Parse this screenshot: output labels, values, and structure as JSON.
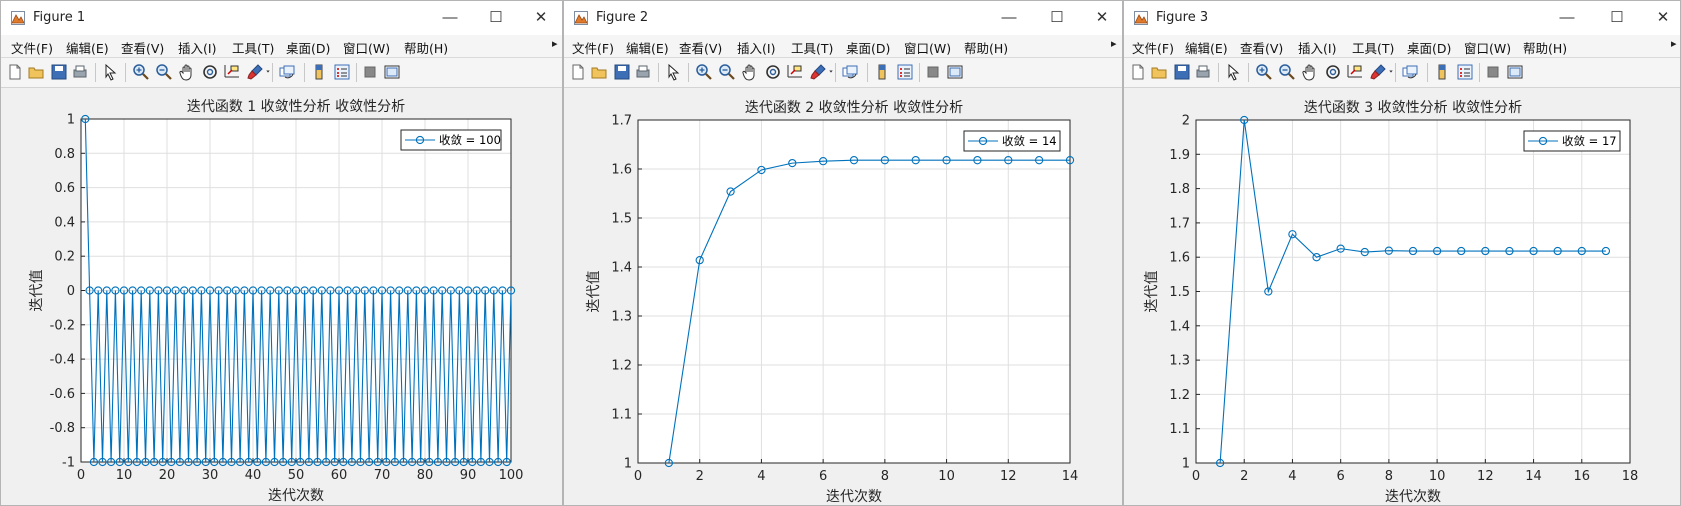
{
  "menu": [
    "文件(F)",
    "编辑(E)",
    "查看(V)",
    "插入(I)",
    "工具(T)",
    "桌面(D)",
    "窗口(W)",
    "帮助(H)"
  ],
  "menu_overflow": "▸",
  "window_controls": {
    "minimize": "—",
    "maximize": "☐",
    "close": "✕"
  },
  "toolbar_icons": [
    "new-figure-icon",
    "open-file-icon",
    "save-icon",
    "print-icon",
    "pointer-icon",
    "zoom-in-icon",
    "zoom-out-icon",
    "pan-icon",
    "rotate-3d-icon",
    "data-cursor-icon",
    "brush-icon",
    "brush-dropdown-icon",
    "link-plot-icon",
    "insert-colorbar-icon",
    "insert-legend-icon",
    "hide-plot-tools-icon",
    "show-plot-tools-icon"
  ],
  "colors": {
    "series": "#0072bd",
    "grid": "#dfdfdf",
    "axes": "#262626"
  },
  "windows": [
    {
      "title": "Figure 1",
      "chart_data": {
        "type": "line",
        "title": "迭代函数 1 收敛性分析 收敛性分析",
        "xlabel": "迭代次数",
        "ylabel": "迭代值",
        "xlim": [
          0,
          100
        ],
        "ylim": [
          -1,
          1
        ],
        "xticks": [
          0,
          10,
          20,
          30,
          40,
          50,
          60,
          70,
          80,
          90,
          100
        ],
        "yticks": [
          -1,
          -0.8,
          -0.6,
          -0.4,
          -0.2,
          0,
          0.2,
          0.4,
          0.6,
          0.8,
          1
        ],
        "xticklabels": [
          "0",
          "10",
          "20",
          "30",
          "40",
          "50",
          "60",
          "70",
          "80",
          "90",
          "100"
        ],
        "yticklabels": [
          "-1",
          "-0.8",
          "-0.6",
          "-0.4",
          "-0.2",
          "0",
          "0.2",
          "0.4",
          "0.6",
          "0.8",
          "1"
        ],
        "grid": true,
        "legend_location": "top-right",
        "series": [
          {
            "name": "收敛 = 100",
            "marker": "circle",
            "x": [
              1,
              2,
              3,
              4,
              5,
              6,
              7,
              8,
              9,
              10,
              11,
              12,
              13,
              14,
              15,
              16,
              17,
              18,
              19,
              20,
              21,
              22,
              23,
              24,
              25,
              26,
              27,
              28,
              29,
              30,
              31,
              32,
              33,
              34,
              35,
              36,
              37,
              38,
              39,
              40,
              41,
              42,
              43,
              44,
              45,
              46,
              47,
              48,
              49,
              50,
              51,
              52,
              53,
              54,
              55,
              56,
              57,
              58,
              59,
              60,
              61,
              62,
              63,
              64,
              65,
              66,
              67,
              68,
              69,
              70,
              71,
              72,
              73,
              74,
              75,
              76,
              77,
              78,
              79,
              80,
              81,
              82,
              83,
              84,
              85,
              86,
              87,
              88,
              89,
              90,
              91,
              92,
              93,
              94,
              95,
              96,
              97,
              98,
              99,
              100
            ],
            "y": [
              1,
              0,
              -1,
              0,
              -1,
              0,
              -1,
              0,
              -1,
              0,
              -1,
              0,
              -1,
              0,
              -1,
              0,
              -1,
              0,
              -1,
              0,
              -1,
              0,
              -1,
              0,
              -1,
              0,
              -1,
              0,
              -1,
              0,
              -1,
              0,
              -1,
              0,
              -1,
              0,
              -1,
              0,
              -1,
              0,
              -1,
              0,
              -1,
              0,
              -1,
              0,
              -1,
              0,
              -1,
              0,
              -1,
              0,
              -1,
              0,
              -1,
              0,
              -1,
              0,
              -1,
              0,
              -1,
              0,
              -1,
              0,
              -1,
              0,
              -1,
              0,
              -1,
              0,
              -1,
              0,
              -1,
              0,
              -1,
              0,
              -1,
              0,
              -1,
              0,
              -1,
              0,
              -1,
              0,
              -1,
              0,
              -1,
              0,
              -1,
              0,
              -1,
              0,
              -1,
              0,
              -1,
              0,
              -1,
              0,
              -1,
              0
            ]
          }
        ]
      }
    },
    {
      "title": "Figure 2",
      "chart_data": {
        "type": "line",
        "title": "迭代函数 2 收敛性分析 收敛性分析",
        "xlabel": "迭代次数",
        "ylabel": "迭代值",
        "xlim": [
          0,
          14
        ],
        "ylim": [
          1,
          1.7
        ],
        "xticks": [
          0,
          2,
          4,
          6,
          8,
          10,
          12,
          14
        ],
        "yticks": [
          1,
          1.1,
          1.2,
          1.3,
          1.4,
          1.5,
          1.6,
          1.7
        ],
        "xticklabels": [
          "0",
          "2",
          "4",
          "6",
          "8",
          "10",
          "12",
          "14"
        ],
        "yticklabels": [
          "1",
          "1.1",
          "1.2",
          "1.3",
          "1.4",
          "1.5",
          "1.6",
          "1.7"
        ],
        "grid": true,
        "legend_location": "top-right",
        "series": [
          {
            "name": "收敛 = 14",
            "marker": "circle",
            "x": [
              1,
              2,
              3,
              4,
              5,
              6,
              7,
              8,
              9,
              10,
              11,
              12,
              13,
              14
            ],
            "y": [
              1,
              1.414,
              1.554,
              1.598,
              1.612,
              1.616,
              1.618,
              1.618,
              1.618,
              1.618,
              1.618,
              1.618,
              1.618,
              1.618
            ]
          }
        ]
      }
    },
    {
      "title": "Figure 3",
      "chart_data": {
        "type": "line",
        "title": "迭代函数 3 收敛性分析 收敛性分析",
        "xlabel": "迭代次数",
        "ylabel": "迭代值",
        "xlim": [
          0,
          18
        ],
        "ylim": [
          1,
          2
        ],
        "xticks": [
          0,
          2,
          4,
          6,
          8,
          10,
          12,
          14,
          16,
          18
        ],
        "yticks": [
          1,
          1.1,
          1.2,
          1.3,
          1.4,
          1.5,
          1.6,
          1.7,
          1.8,
          1.9,
          2
        ],
        "xticklabels": [
          "0",
          "2",
          "4",
          "6",
          "8",
          "10",
          "12",
          "14",
          "16",
          "18"
        ],
        "yticklabels": [
          "1",
          "1.1",
          "1.2",
          "1.3",
          "1.4",
          "1.5",
          "1.6",
          "1.7",
          "1.8",
          "1.9",
          "2"
        ],
        "grid": true,
        "legend_location": "top-right",
        "series": [
          {
            "name": "收敛 = 17",
            "marker": "circle",
            "x": [
              1,
              2,
              3,
              4,
              5,
              6,
              7,
              8,
              9,
              10,
              11,
              12,
              13,
              14,
              15,
              16,
              17
            ],
            "y": [
              1,
              2,
              1.5,
              1.667,
              1.6,
              1.625,
              1.615,
              1.619,
              1.618,
              1.618,
              1.618,
              1.618,
              1.618,
              1.618,
              1.618,
              1.618,
              1.618
            ]
          }
        ]
      }
    }
  ]
}
